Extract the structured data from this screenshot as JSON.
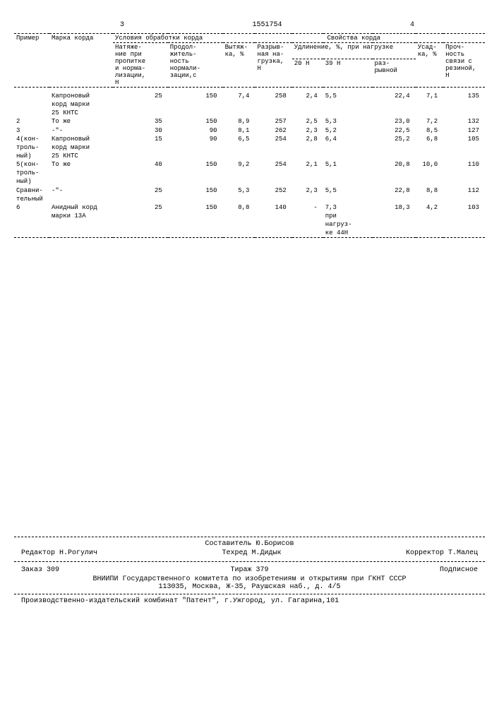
{
  "header": {
    "left_page": "3",
    "patent_number": "1551754",
    "right_page": "4"
  },
  "table": {
    "headers": {
      "primer": "Пример",
      "marka": "Марка корда",
      "usloviya": "Условия обработки корда",
      "svoistva": "Свойства корда",
      "natyazh": "Натяже-\nние при\nпропитке\nи норма-\nлизации,\nН",
      "prodolzh": "Продол-\nжитель-\nность\nнормали-\nзации,с",
      "vytyazh": "Вытяж-\nка, %",
      "razryv": "Разрыв-\nная на-\nгрузка,\nН",
      "udlin": "Удлинение, %, при нагрузке",
      "u20": "20 Н",
      "u39": "39 Н",
      "urazr": "раз-\nрывной",
      "usadka": "Усад-\nка, %",
      "proch": "Проч-\nность\nсвязи с\nрезиной,\nН"
    },
    "rows": [
      {
        "primer": "",
        "marka": "Капроновый\nкорд марки\n25 КНТС",
        "n": "25",
        "p": "150",
        "v": "7,4",
        "r": "258",
        "u20": "2,4",
        "u39": "5,5",
        "ur": "22,4",
        "us": "7,1",
        "pr": "135"
      },
      {
        "primer": "2",
        "marka": "То же",
        "n": "35",
        "p": "150",
        "v": "8,9",
        "r": "257",
        "u20": "2,5",
        "u39": "5,3",
        "ur": "23,0",
        "us": "7,2",
        "pr": "132"
      },
      {
        "primer": "3",
        "marka": "-\"-",
        "n": "30",
        "p": "90",
        "v": "8,1",
        "r": "262",
        "u20": "2,3",
        "u39": "5,2",
        "ur": "22,5",
        "us": "8,5",
        "pr": "127"
      },
      {
        "primer": "4(кон-\nтроль-\nный)",
        "marka": "Капроновый\nкорд марки\n25 КНТС",
        "n": "15",
        "p": "90",
        "v": "6,5",
        "r": "254",
        "u20": "2,8",
        "u39": "6,4",
        "ur": "25,2",
        "us": "6,8",
        "pr": "105"
      },
      {
        "primer": "5(кон-\nтроль-\nный)",
        "marka": "То же",
        "n": "40",
        "p": "150",
        "v": "9,2",
        "r": "254",
        "u20": "2,1",
        "u39": "5,1",
        "ur": "20,8",
        "us": "10,0",
        "pr": "110"
      },
      {
        "primer": "Сравни-\nтельный",
        "marka": "-\"-",
        "n": "25",
        "p": "150",
        "v": "5,3",
        "r": "252",
        "u20": "2,3",
        "u39": "5,5",
        "ur": "22,8",
        "us": "8,8",
        "pr": "112"
      },
      {
        "primer": "6",
        "marka": "Анидный корд\nмарки 13А",
        "n": "25",
        "p": "150",
        "v": "8,8",
        "r": "140",
        "u20": "-",
        "u39": "7,3\nпри\nнагруз-\nке 44Н",
        "ur": "18,3",
        "us": "4,2",
        "pr": "103"
      }
    ]
  },
  "footer": {
    "sostavitel": "Составитель Ю.Борисов",
    "redaktor": "Редактор Н.Рогулич",
    "tehred": "Техред М.Дидык",
    "korrektor": "Корректор Т.Малец",
    "zakaz": "Заказ 309",
    "tirazh": "Тираж 379",
    "podpisnoe": "Подписное",
    "org1": "ВНИИПИ Государственного комитета по изобретениям и открытиям при ГКНТ СССР",
    "org2": "113035, Москва, Ж-35, Раушская наб., д. 4/5",
    "org3": "Производственно-издательский комбинат \"Патент\", г.Ужгород, ул. Гагарина,101"
  }
}
